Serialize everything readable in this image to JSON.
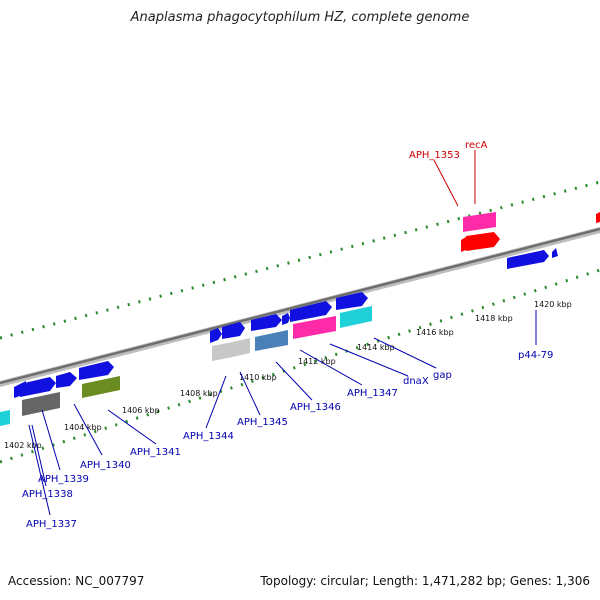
{
  "title": "Anaplasma phagocytophilum HZ, complete genome",
  "footer": {
    "accession": "Accession: NC_007797",
    "summary": "Topology: circular; Length: 1,471,282 bp; Genes: 1,306"
  },
  "colors": {
    "forward_gene": "#1010e0",
    "recA": "#ff0000",
    "highlight_gene": "#ff2aa8",
    "cds_cyan": "#20d0d8",
    "cds_gray": "#666666",
    "cds_silver": "#c8c8c8",
    "cds_olive": "#6a8c20",
    "cds_steel": "#4a80b8",
    "tick_green": "#2a8a2a",
    "label_blue": "#0000b0",
    "label_red": "#cc0000"
  },
  "scale_labels": [
    "1402 kbp",
    "1404 kbp",
    "1406 kbp",
    "1408 kbp",
    "1410 kbp",
    "1412 kbp",
    "1414 kbp",
    "1416 kbp",
    "1418 kbp",
    "1420 kbp"
  ],
  "gene_labels": {
    "APH_1337": "APH_1337",
    "APH_1338": "APH_1338",
    "APH_1339": "APH_1339",
    "APH_1340": "APH_1340",
    "APH_1341": "APH_1341",
    "APH_1344": "APH_1344",
    "APH_1345": "APH_1345",
    "APH_1346": "APH_1346",
    "APH_1347": "APH_1347",
    "dnaX": "dnaX",
    "gap": "gap",
    "p44_79": "p44-79",
    "APH_1353": "APH_1353",
    "recA": "recA"
  }
}
